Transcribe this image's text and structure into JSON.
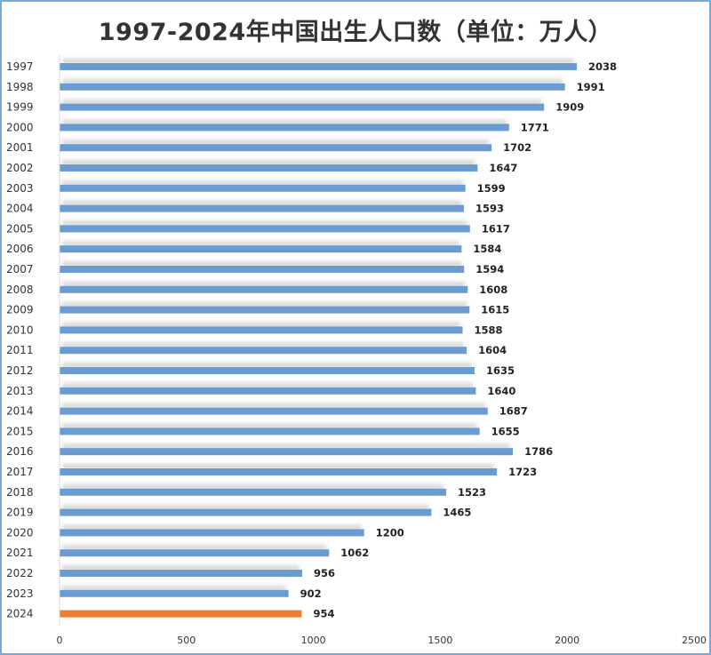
{
  "chart_data": {
    "type": "bar",
    "orientation": "horizontal",
    "title": "1997-2024年中国出生人口数（单位：万人）",
    "categories": [
      "1997",
      "1998",
      "1999",
      "2000",
      "2001",
      "2002",
      "2003",
      "2004",
      "2005",
      "2006",
      "2007",
      "2008",
      "2009",
      "2010",
      "2011",
      "2012",
      "2013",
      "2014",
      "2015",
      "2016",
      "2017",
      "2018",
      "2019",
      "2020",
      "2021",
      "2022",
      "2023",
      "2024"
    ],
    "values": [
      2038,
      1991,
      1909,
      1771,
      1702,
      1647,
      1599,
      1593,
      1617,
      1584,
      1594,
      1608,
      1615,
      1588,
      1604,
      1635,
      1640,
      1687,
      1655,
      1786,
      1723,
      1523,
      1465,
      1200,
      1062,
      956,
      902,
      954
    ],
    "xlim": [
      0,
      2500
    ],
    "xticks": [
      0,
      500,
      1000,
      1500,
      2000,
      2500
    ],
    "xlabel": "",
    "ylabel": "",
    "grid": false,
    "legend": "none",
    "bar_color": "#6a9bd1",
    "highlight_color": "#ed7d31",
    "highlight_category": "2024"
  }
}
